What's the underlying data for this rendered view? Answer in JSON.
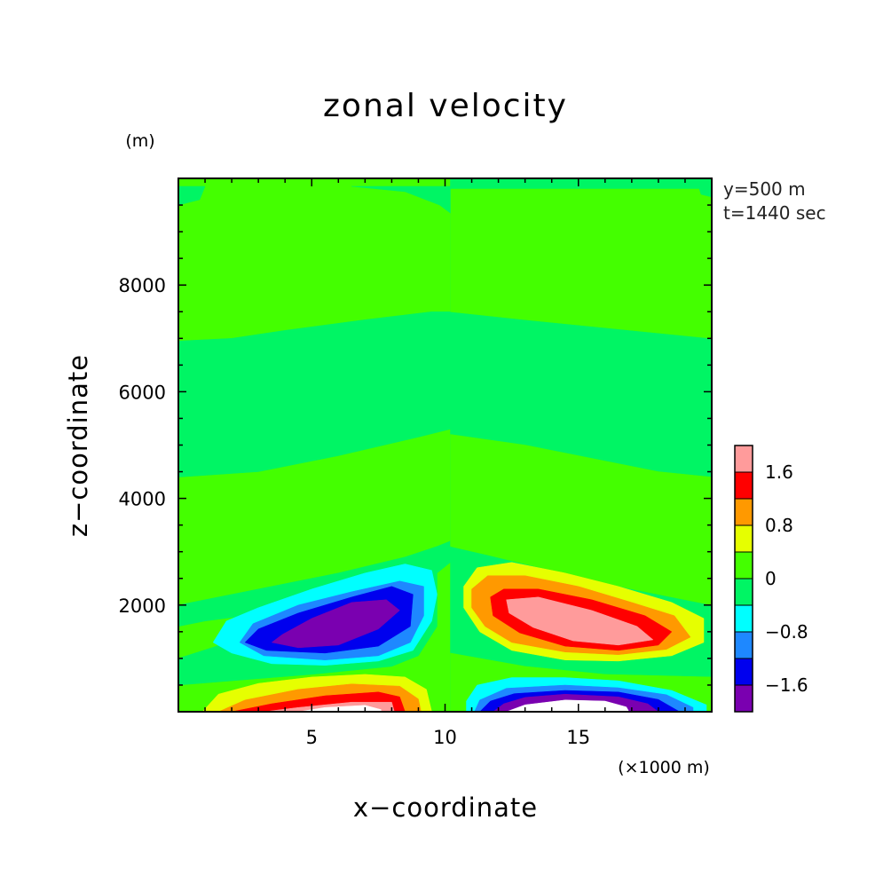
{
  "chart_data": {
    "type": "heatmap",
    "title": "zonal velocity",
    "xlabel": "x−coordinate",
    "ylabel": "z−coordinate",
    "x_unit": "(×1000 m)",
    "y_unit": "(m)",
    "annotations": [
      "y=500 m",
      "t=1440 sec"
    ],
    "xlim": [
      0,
      20
    ],
    "ylim": [
      0,
      10000
    ],
    "x_ticks": [
      {
        "value": 5,
        "label": "5"
      },
      {
        "value": 10,
        "label": "10"
      },
      {
        "value": 15,
        "label": "15"
      }
    ],
    "y_ticks": [
      {
        "value": 2000,
        "label": "2000"
      },
      {
        "value": 4000,
        "label": "4000"
      },
      {
        "value": 6000,
        "label": "6000"
      },
      {
        "value": 8000,
        "label": "8000"
      }
    ],
    "colorbar": {
      "levels": [
        {
          "range": "< -1.6",
          "color": "#7a00b0"
        },
        {
          "range": "-1.6 to -1.2",
          "color": "#0000ee"
        },
        {
          "range": "-1.2 to -0.8",
          "color": "#1e88ff"
        },
        {
          "range": "-0.8 to -0.4",
          "color": "#00ffff"
        },
        {
          "range": "-0.4 to 0",
          "color": "#00f564"
        },
        {
          "range": "0 to 0.4",
          "color": "#44ff00"
        },
        {
          "range": "0.4 to 0.8",
          "color": "#e6ff00"
        },
        {
          "range": "0.8 to 1.2",
          "color": "#ff9900"
        },
        {
          "range": "1.2 to 1.6",
          "color": "#ff0000"
        },
        {
          "range": "> 1.6",
          "color": "#ff9b9b"
        }
      ],
      "tick_labels": [
        {
          "value": 1.6,
          "label": "1.6"
        },
        {
          "value": 0.8,
          "label": "0.8"
        },
        {
          "value": 0,
          "label": "0"
        },
        {
          "value": -0.8,
          "label": "−0.8"
        },
        {
          "value": -1.6,
          "label": "−1.6"
        }
      ]
    },
    "contour_regions": [
      {
        "name": "background-positive",
        "color": "#44ff00",
        "points": [
          [
            0,
            0
          ],
          [
            20,
            0
          ],
          [
            20,
            10000
          ],
          [
            0,
            10000
          ]
        ]
      },
      {
        "name": "near-zero-bottom-left",
        "color": "#00f564",
        "points": [
          [
            0,
            1000
          ],
          [
            2.5,
            1400
          ],
          [
            5,
            1900
          ],
          [
            7.5,
            2300
          ],
          [
            9.7,
            2600
          ],
          [
            9.7,
            1600
          ],
          [
            9,
            1050
          ],
          [
            8,
            850
          ],
          [
            5,
            700
          ],
          [
            2.5,
            600
          ],
          [
            0,
            500
          ]
        ]
      },
      {
        "name": "near-zero-left-band-4000",
        "color": "#00f564",
        "points": [
          [
            0,
            2000
          ],
          [
            3,
            2300
          ],
          [
            6,
            2600
          ],
          [
            8.5,
            2900
          ],
          [
            9.7,
            3100
          ],
          [
            10.2,
            3200
          ],
          [
            10.2,
            2800
          ],
          [
            9.7,
            2600
          ],
          [
            7,
            2200
          ],
          [
            4,
            1900
          ],
          [
            1,
            1700
          ],
          [
            0,
            1600
          ]
        ]
      },
      {
        "name": "near-zero-left-band-6000",
        "color": "#00f564",
        "points": [
          [
            0,
            4400
          ],
          [
            3,
            4500
          ],
          [
            6,
            4800
          ],
          [
            9,
            5150
          ],
          [
            10.2,
            5300
          ],
          [
            10.2,
            7500
          ],
          [
            9.5,
            7500
          ],
          [
            7,
            7350
          ],
          [
            4,
            7150
          ],
          [
            2,
            7000
          ],
          [
            0,
            6950
          ]
        ]
      },
      {
        "name": "near-zero-right-column",
        "color": "#00f564",
        "points": [
          [
            10.2,
            0
          ],
          [
            20,
            0
          ],
          [
            20,
            10000
          ],
          [
            10.2,
            10000
          ],
          [
            10.2,
            8000
          ]
        ]
      },
      {
        "name": "right-green-pocket-7000",
        "color": "#44ff00",
        "points": [
          [
            10.2,
            7500
          ],
          [
            13,
            7350
          ],
          [
            16,
            7200
          ],
          [
            20,
            7000
          ],
          [
            20,
            9800
          ],
          [
            10.2,
            9800
          ]
        ]
      },
      {
        "name": "right-green-pocket-4500",
        "color": "#44ff00",
        "points": [
          [
            10.2,
            5200
          ],
          [
            13,
            5000
          ],
          [
            16,
            4700
          ],
          [
            18,
            4500
          ],
          [
            20,
            4400
          ],
          [
            20,
            2000
          ],
          [
            17,
            2300
          ],
          [
            14,
            2650
          ],
          [
            11.5,
            2950
          ],
          [
            10.2,
            3100
          ]
        ]
      },
      {
        "name": "right-green-pocket-bottom",
        "color": "#44ff00",
        "points": [
          [
            10.2,
            1100
          ],
          [
            13,
            850
          ],
          [
            16,
            700
          ],
          [
            20,
            650
          ],
          [
            20,
            0
          ],
          [
            10.2,
            0
          ]
        ]
      },
      {
        "name": "neg-cyan",
        "color": "#00ffff",
        "points": [
          [
            1.3,
            1300
          ],
          [
            2,
            1100
          ],
          [
            3.5,
            900
          ],
          [
            5.5,
            870
          ],
          [
            7.5,
            950
          ],
          [
            8.8,
            1150
          ],
          [
            9.5,
            1700
          ],
          [
            9.7,
            2200
          ],
          [
            9.5,
            2650
          ],
          [
            8.5,
            2770
          ],
          [
            7,
            2600
          ],
          [
            5,
            2300
          ],
          [
            3,
            1950
          ],
          [
            1.8,
            1700
          ]
        ]
      },
      {
        "name": "neg-azure",
        "color": "#1e88ff",
        "points": [
          [
            2.3,
            1300
          ],
          [
            3.2,
            1050
          ],
          [
            5.5,
            970
          ],
          [
            7.5,
            1050
          ],
          [
            8.7,
            1300
          ],
          [
            9.2,
            1800
          ],
          [
            9.2,
            2350
          ],
          [
            8.3,
            2450
          ],
          [
            6.5,
            2250
          ],
          [
            4.5,
            2000
          ],
          [
            2.8,
            1650
          ]
        ]
      },
      {
        "name": "neg-blue",
        "color": "#0000ee",
        "points": [
          [
            2.5,
            1300
          ],
          [
            3.3,
            1150
          ],
          [
            5.5,
            1100
          ],
          [
            7.5,
            1230
          ],
          [
            8.7,
            1600
          ],
          [
            8.8,
            2200
          ],
          [
            8,
            2350
          ],
          [
            6.5,
            2150
          ],
          [
            4.5,
            1850
          ],
          [
            3,
            1550
          ]
        ]
      },
      {
        "name": "neg-purple",
        "color": "#7a00b0",
        "points": [
          [
            3.5,
            1300
          ],
          [
            4.5,
            1200
          ],
          [
            6,
            1250
          ],
          [
            7.5,
            1550
          ],
          [
            8.3,
            1900
          ],
          [
            7.8,
            2100
          ],
          [
            6.5,
            2050
          ],
          [
            5,
            1750
          ],
          [
            3.9,
            1450
          ]
        ]
      },
      {
        "name": "pos-yellow-upper",
        "color": "#e6ff00",
        "points": [
          [
            10.7,
            2350
          ],
          [
            11.2,
            2700
          ],
          [
            12.5,
            2800
          ],
          [
            14.5,
            2600
          ],
          [
            16.5,
            2350
          ],
          [
            18.5,
            2050
          ],
          [
            19.7,
            1750
          ],
          [
            19.7,
            1300
          ],
          [
            18.5,
            1050
          ],
          [
            16.5,
            950
          ],
          [
            14.5,
            970
          ],
          [
            12.5,
            1150
          ],
          [
            11.3,
            1500
          ],
          [
            10.7,
            1950
          ]
        ]
      },
      {
        "name": "pos-orange-upper",
        "color": "#ff9900",
        "points": [
          [
            11,
            2300
          ],
          [
            11.6,
            2550
          ],
          [
            13,
            2550
          ],
          [
            15,
            2350
          ],
          [
            17,
            2050
          ],
          [
            18.6,
            1800
          ],
          [
            19.2,
            1400
          ],
          [
            18.3,
            1170
          ],
          [
            16.5,
            1070
          ],
          [
            14.5,
            1120
          ],
          [
            12.5,
            1300
          ],
          [
            11.5,
            1600
          ],
          [
            11,
            1950
          ]
        ]
      },
      {
        "name": "pos-red-upper",
        "color": "#ff0000",
        "points": [
          [
            11.7,
            2150
          ],
          [
            12.2,
            2300
          ],
          [
            13.5,
            2300
          ],
          [
            15.5,
            2100
          ],
          [
            17.5,
            1800
          ],
          [
            18.5,
            1500
          ],
          [
            18,
            1250
          ],
          [
            16.5,
            1150
          ],
          [
            14.5,
            1230
          ],
          [
            12.8,
            1480
          ],
          [
            11.8,
            1800
          ]
        ]
      },
      {
        "name": "pos-pink-upper",
        "color": "#ff9b9b",
        "points": [
          [
            12.3,
            2100
          ],
          [
            13.5,
            2150
          ],
          [
            15.5,
            1900
          ],
          [
            17.2,
            1600
          ],
          [
            17.8,
            1350
          ],
          [
            16.5,
            1250
          ],
          [
            14.8,
            1330
          ],
          [
            13.3,
            1580
          ],
          [
            12.4,
            1850
          ]
        ]
      },
      {
        "name": "pos-yellow-lower",
        "color": "#e6ff00",
        "points": [
          [
            0.9,
            0
          ],
          [
            1.5,
            330
          ],
          [
            3,
            530
          ],
          [
            5,
            650
          ],
          [
            7,
            700
          ],
          [
            8.5,
            650
          ],
          [
            9.3,
            420
          ],
          [
            9.5,
            0
          ]
        ]
      },
      {
        "name": "pos-orange-lower",
        "color": "#ff9900",
        "points": [
          [
            1.5,
            0
          ],
          [
            2.5,
            220
          ],
          [
            4.5,
            420
          ],
          [
            6.5,
            520
          ],
          [
            8.3,
            480
          ],
          [
            9,
            240
          ],
          [
            9.1,
            0
          ]
        ]
      },
      {
        "name": "pos-red-lower",
        "color": "#ff0000",
        "points": [
          [
            2,
            0
          ],
          [
            3.5,
            150
          ],
          [
            5.5,
            300
          ],
          [
            7.5,
            370
          ],
          [
            8.3,
            280
          ],
          [
            8.5,
            0
          ]
        ]
      },
      {
        "name": "pos-pink-lower",
        "color": "#ff9b9b",
        "points": [
          [
            3.2,
            0
          ],
          [
            4.5,
            80
          ],
          [
            6.5,
            180
          ],
          [
            8,
            180
          ],
          [
            8.1,
            0
          ]
        ]
      },
      {
        "name": "pos-white-lower",
        "color": "#ffffff",
        "points": [
          [
            4.5,
            0
          ],
          [
            5.5,
            80
          ],
          [
            7,
            120
          ],
          [
            7.6,
            40
          ],
          [
            7.6,
            0
          ]
        ]
      },
      {
        "name": "neg-cyan-lower",
        "color": "#00ffff",
        "points": [
          [
            10.8,
            0
          ],
          [
            10.8,
            200
          ],
          [
            11.2,
            500
          ],
          [
            12.5,
            640
          ],
          [
            14.5,
            640
          ],
          [
            16.5,
            580
          ],
          [
            18.5,
            400
          ],
          [
            19.8,
            130
          ],
          [
            19.8,
            0
          ]
        ]
      },
      {
        "name": "neg-azure-lower",
        "color": "#1e88ff",
        "points": [
          [
            11.1,
            0
          ],
          [
            11.3,
            220
          ],
          [
            12.3,
            440
          ],
          [
            14.5,
            500
          ],
          [
            16.5,
            450
          ],
          [
            18.3,
            320
          ],
          [
            19.3,
            80
          ],
          [
            19.3,
            0
          ]
        ]
      },
      {
        "name": "neg-blue-lower",
        "color": "#0000ee",
        "points": [
          [
            11.3,
            0
          ],
          [
            11.7,
            200
          ],
          [
            12.6,
            340
          ],
          [
            14.5,
            400
          ],
          [
            16.5,
            370
          ],
          [
            18,
            230
          ],
          [
            18.8,
            0
          ]
        ]
      },
      {
        "name": "neg-purple-lower",
        "color": "#7a00b0",
        "points": [
          [
            11.8,
            0
          ],
          [
            12.2,
            150
          ],
          [
            13,
            270
          ],
          [
            14.5,
            330
          ],
          [
            16.5,
            280
          ],
          [
            17.6,
            150
          ],
          [
            18,
            0
          ]
        ]
      },
      {
        "name": "neg-white-lower",
        "color": "#ffffff",
        "points": [
          [
            12.3,
            0
          ],
          [
            13,
            130
          ],
          [
            14.5,
            220
          ],
          [
            16,
            200
          ],
          [
            16.8,
            90
          ],
          [
            16.9,
            0
          ]
        ]
      },
      {
        "name": "near-zero-top-left-corner",
        "color": "#00f564",
        "points": [
          [
            0,
            9500
          ],
          [
            0.8,
            9600
          ],
          [
            1,
            9850
          ],
          [
            0,
            9850
          ]
        ]
      },
      {
        "name": "near-zero-top-ridge",
        "color": "#00f564",
        "points": [
          [
            6.5,
            9850
          ],
          [
            8.5,
            9750
          ],
          [
            9.8,
            9500
          ],
          [
            10.2,
            9350
          ],
          [
            10.2,
            9850
          ]
        ]
      },
      {
        "name": "near-zero-top-right-corner",
        "color": "#00f564",
        "points": [
          [
            19.5,
            9850
          ],
          [
            19.6,
            9700
          ],
          [
            20,
            9650
          ],
          [
            20,
            9850
          ]
        ]
      }
    ]
  }
}
